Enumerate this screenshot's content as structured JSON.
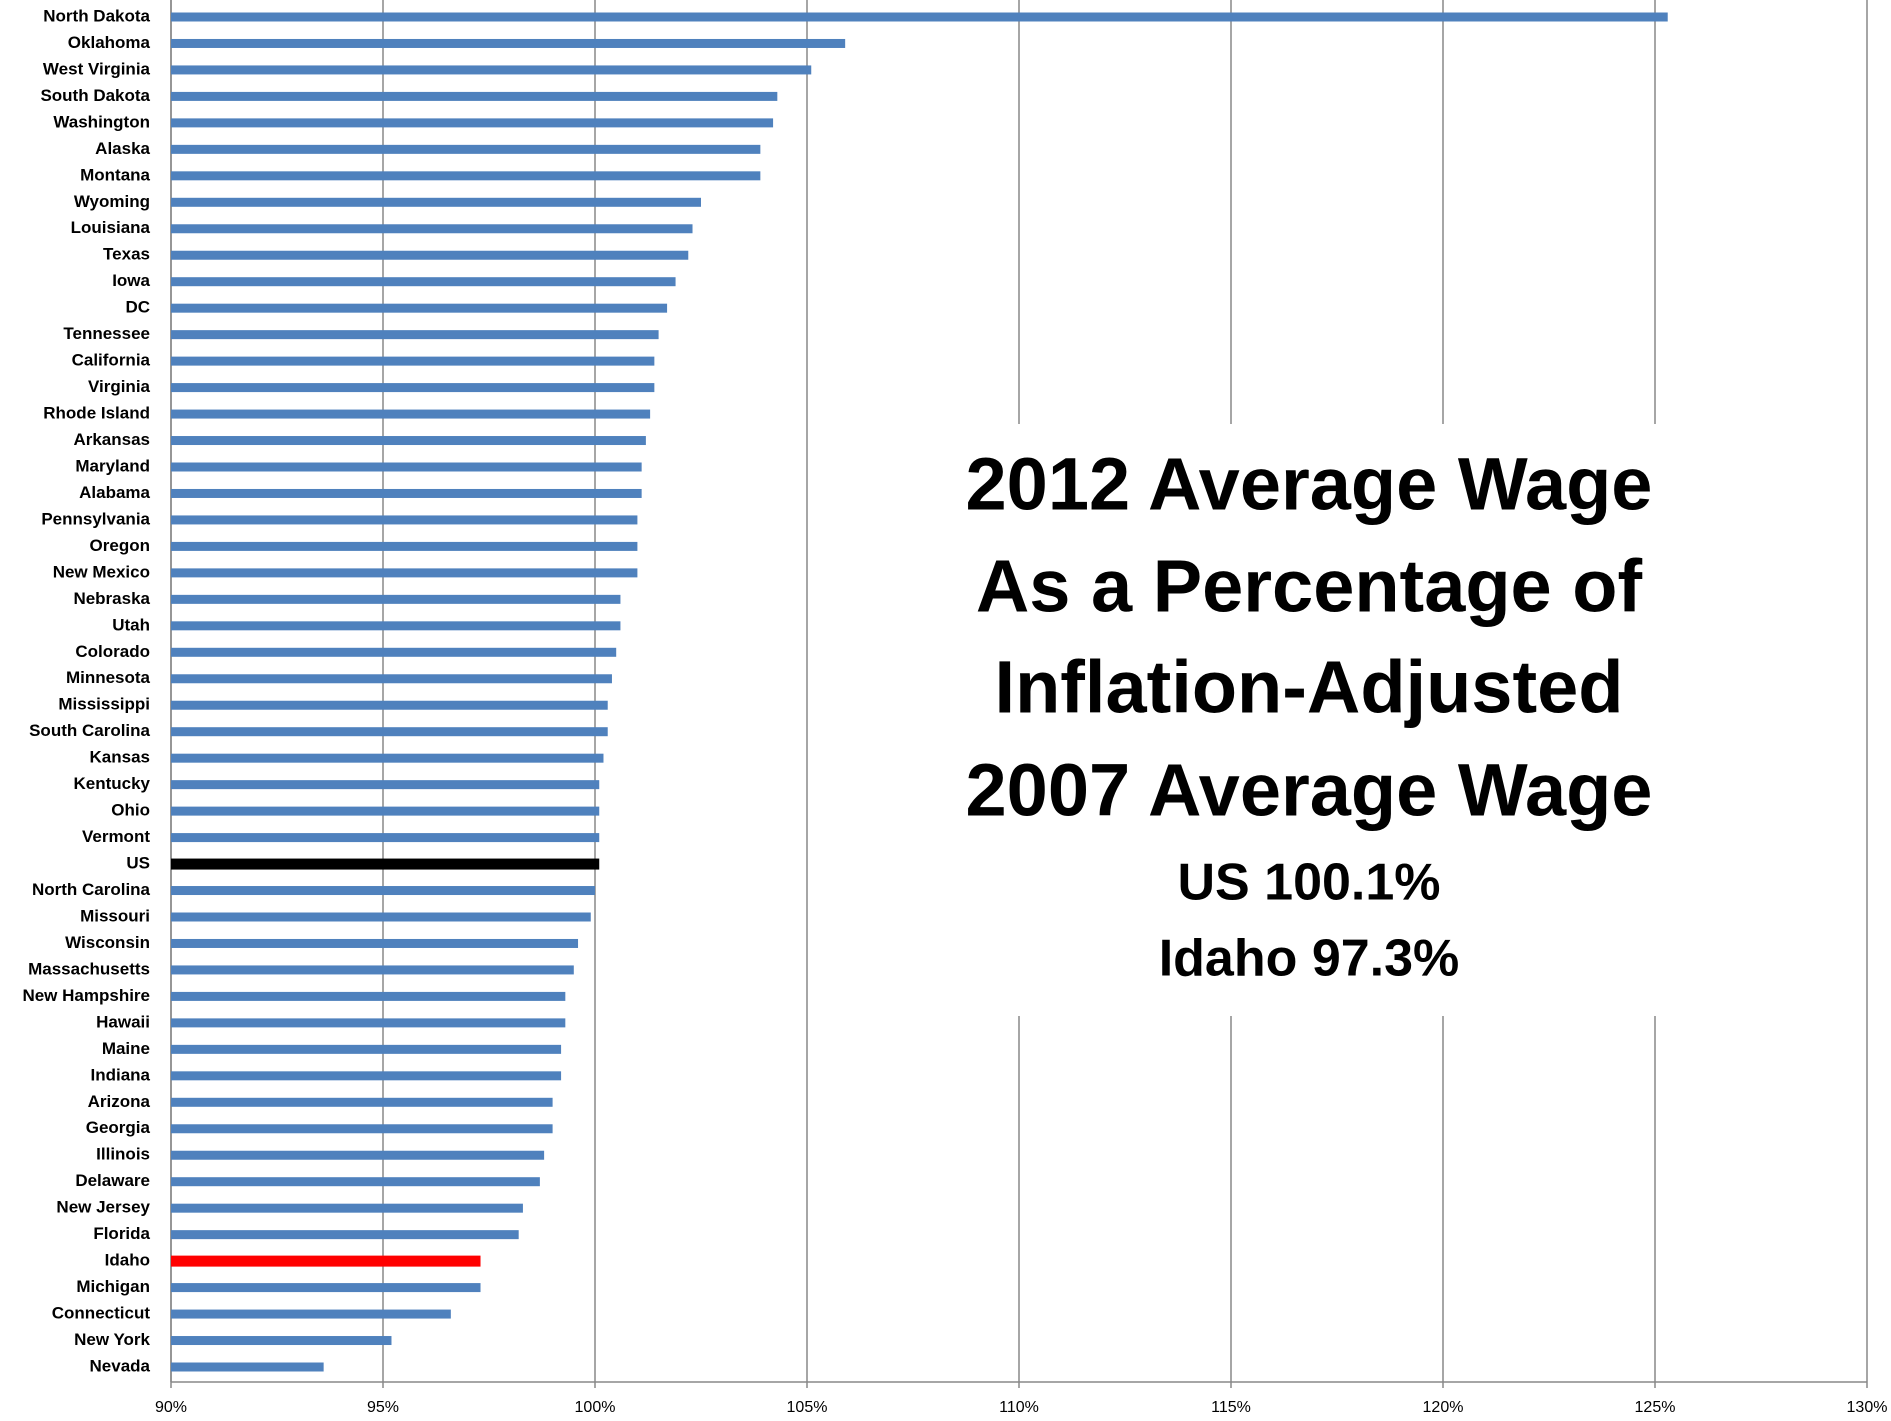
{
  "chart_data": {
    "type": "bar",
    "orientation": "horizontal",
    "annotations": [
      "2012 Average Wage",
      "As a Percentage of",
      "Inflation-Adjusted",
      "2007 Average Wage",
      "US 100.1%",
      "Idaho 97.3%"
    ],
    "categories": [
      "North Dakota",
      "Oklahoma",
      "West Virginia",
      "South Dakota",
      "Washington",
      "Alaska",
      "Montana",
      "Wyoming",
      "Louisiana",
      "Texas",
      "Iowa",
      "DC",
      "Tennessee",
      "California",
      "Virginia",
      "Rhode Island",
      "Arkansas",
      "Maryland",
      "Alabama",
      "Pennsylvania",
      "Oregon",
      "New Mexico",
      "Nebraska",
      "Utah",
      "Colorado",
      "Minnesota",
      "Mississippi",
      "South Carolina",
      "Kansas",
      "Kentucky",
      "Ohio",
      "Vermont",
      "US",
      "North Carolina",
      "Missouri",
      "Wisconsin",
      "Massachusetts",
      "New Hampshire",
      "Hawaii",
      "Maine",
      "Indiana",
      "Arizona",
      "Georgia",
      "Illinois",
      "Delaware",
      "New Jersey",
      "Florida",
      "Idaho",
      "Michigan",
      "Connecticut",
      "New York",
      "Nevada"
    ],
    "values": [
      125.3,
      105.9,
      105.1,
      104.3,
      104.2,
      103.9,
      103.9,
      102.5,
      102.3,
      102.2,
      101.9,
      101.7,
      101.5,
      101.4,
      101.4,
      101.3,
      101.2,
      101.1,
      101.1,
      101.0,
      101.0,
      101.0,
      100.6,
      100.6,
      100.5,
      100.4,
      100.3,
      100.3,
      100.2,
      100.1,
      100.1,
      100.1,
      100.1,
      100.0,
      99.9,
      99.6,
      99.5,
      99.3,
      99.3,
      99.2,
      99.2,
      99.0,
      99.0,
      98.8,
      98.7,
      98.3,
      98.2,
      97.3,
      97.3,
      96.6,
      95.2,
      93.6
    ],
    "color": "#4f81bd",
    "highlight_colors": {
      "US": "#000000",
      "Idaho": "#ff0000"
    },
    "xlim": [
      90,
      130
    ],
    "xticks": [
      {
        "value": 90,
        "label": "90%"
      },
      {
        "value": 95,
        "label": "95%"
      },
      {
        "value": 100,
        "label": "100%"
      },
      {
        "value": 105,
        "label": "105%"
      },
      {
        "value": 110,
        "label": "110%"
      },
      {
        "value": 115,
        "label": "115%"
      },
      {
        "value": 120,
        "label": "120%"
      },
      {
        "value": 125,
        "label": "125%"
      },
      {
        "value": 130,
        "label": "130%"
      }
    ],
    "grid": true
  }
}
